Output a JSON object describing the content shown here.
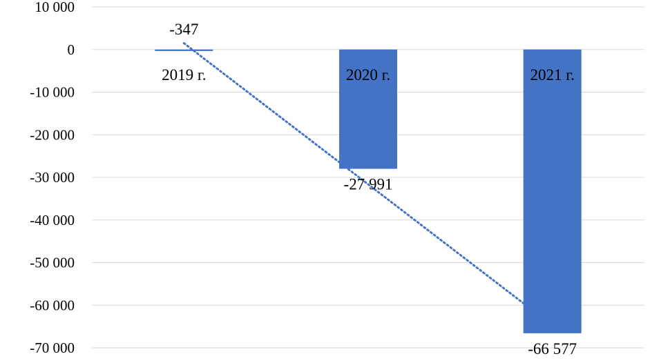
{
  "chart_data": {
    "type": "bar",
    "categories": [
      "2019 г.",
      "2020 г.",
      "2021 г."
    ],
    "series": [
      {
        "values": [
          -347,
          -27991,
          -66577
        ],
        "color": "#4472c4"
      }
    ],
    "data_labels": [
      "-347",
      "-27 991",
      "-66 577"
    ],
    "ylim": [
      -70000,
      10000
    ],
    "yticks": [
      10000,
      0,
      -10000,
      -20000,
      -30000,
      -40000,
      -50000,
      -60000,
      -70000
    ],
    "ytick_labels": [
      "10 000",
      "0",
      "-10 000",
      "-20 000",
      "-30 000",
      "-40 000",
      "-50 000",
      "-60 000",
      "-70 000"
    ],
    "grid": true,
    "trendline": {
      "type": "linear",
      "style": "dotted",
      "color": "#4472c4"
    },
    "title": "",
    "xlabel": "",
    "ylabel": ""
  }
}
